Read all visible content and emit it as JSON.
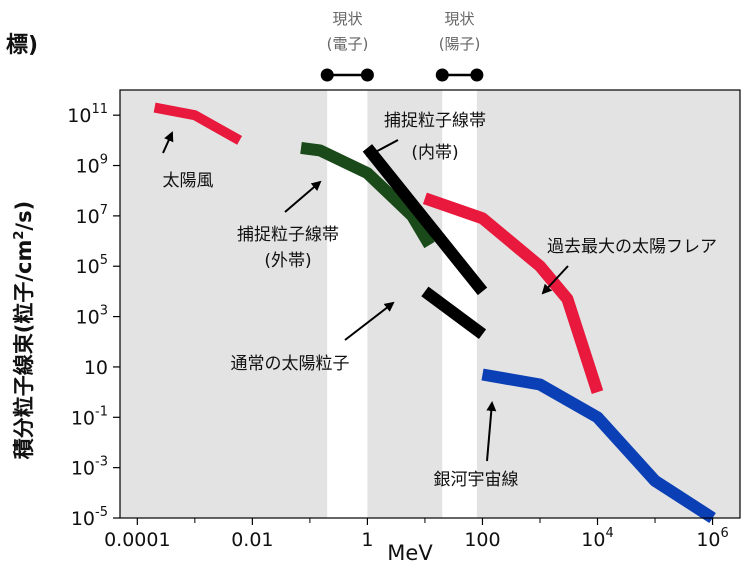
{
  "corner_label": "標)",
  "chart_data": {
    "type": "line",
    "title": "",
    "xlabel": "MeV",
    "ylabel_parts": [
      "積分粒子線束(粒子/cm",
      "2",
      "/s)"
    ],
    "x_scale": "log",
    "y_scale": "log",
    "xlim": [
      5e-05,
      3000000
    ],
    "ylim": [
      1e-05,
      1000000000000
    ],
    "grid": false,
    "legend": "none",
    "x_ticks": [
      {
        "v": 0.0001,
        "base": "0.0001",
        "exp": ""
      },
      {
        "v": 0.01,
        "base": "0.01",
        "exp": ""
      },
      {
        "v": 1,
        "base": "1",
        "exp": ""
      },
      {
        "v": 100,
        "base": "100",
        "exp": ""
      },
      {
        "v": 10000,
        "base": "10",
        "exp": "4"
      },
      {
        "v": 1000000,
        "base": "10",
        "exp": "6"
      }
    ],
    "y_ticks": [
      {
        "v": 100000000000,
        "base": "10",
        "exp": "11"
      },
      {
        "v": 1000000000,
        "base": "10",
        "exp": "9"
      },
      {
        "v": 10000000,
        "base": "10",
        "exp": "7"
      },
      {
        "v": 100000,
        "base": "10",
        "exp": "5"
      },
      {
        "v": 1000,
        "base": "10",
        "exp": "3"
      },
      {
        "v": 10,
        "base": "10",
        "exp": ""
      },
      {
        "v": 0.1,
        "base": "10",
        "exp": "-1"
      },
      {
        "v": 0.001,
        "base": "10",
        "exp": "-3"
      },
      {
        "v": 1e-05,
        "base": "10",
        "exp": "-5"
      }
    ],
    "bands": [
      {
        "x0": 0.2,
        "x1": 1
      },
      {
        "x0": 20,
        "x1": 80
      }
    ],
    "band_headers": [
      {
        "x": 0.45,
        "line1": "現状",
        "line2": "(電子)",
        "seg": [
          0.2,
          1
        ]
      },
      {
        "x": 40,
        "line1": "現状",
        "line2": "(陽子)",
        "seg": [
          20,
          80
        ]
      }
    ],
    "series": [
      {
        "name": "太陽風",
        "color": "#e8193c",
        "width": 10,
        "points": [
          [
            0.0002,
            200000000000
          ],
          [
            0.001,
            100000000000
          ],
          [
            0.006,
            10000000000
          ]
        ]
      },
      {
        "name": "捕捉粒子線帯(外帯)",
        "color": "#1a4a1a",
        "width": 12,
        "points": [
          [
            0.07,
            5000000000
          ],
          [
            0.15,
            4000000000
          ],
          [
            1,
            500000000
          ],
          [
            6,
            10000000
          ],
          [
            12,
            700000
          ]
        ]
      },
      {
        "name": "捕捉粒子線帯(内帯)",
        "color": "#000000",
        "width": 12,
        "points": [
          [
            1,
            5000000000
          ],
          [
            100,
            10000
          ]
        ]
      },
      {
        "name": "通常の太陽粒子",
        "color": "#000000",
        "width": 12,
        "points": [
          [
            10,
            10000
          ],
          [
            100,
            200
          ]
        ]
      },
      {
        "name": "過去最大の太陽フレア",
        "color": "#e8193c",
        "width": 12,
        "points": [
          [
            10,
            50000000
          ],
          [
            100,
            8000000
          ],
          [
            1000,
            100000
          ],
          [
            3000,
            5000
          ],
          [
            10000,
            1
          ]
        ]
      },
      {
        "name": "銀河宇宙線",
        "color": "#0a3fb5",
        "width": 12,
        "points": [
          [
            100,
            5
          ],
          [
            1000,
            2
          ],
          [
            10000,
            0.1
          ],
          [
            100000,
            0.0003
          ],
          [
            1000000,
            1e-05
          ]
        ]
      }
    ],
    "annotations": [
      {
        "line1": "太陽風",
        "line2": ""
      },
      {
        "line1": "捕捉粒子線帯",
        "line2": "(外帯)"
      },
      {
        "line1": "捕捉粒子線帯",
        "line2": "(内帯)"
      },
      {
        "line1": "通常の太陽粒子",
        "line2": ""
      },
      {
        "line1": "過去最大の太陽フレア",
        "line2": ""
      },
      {
        "line1": "銀河宇宙線",
        "line2": ""
      }
    ]
  }
}
